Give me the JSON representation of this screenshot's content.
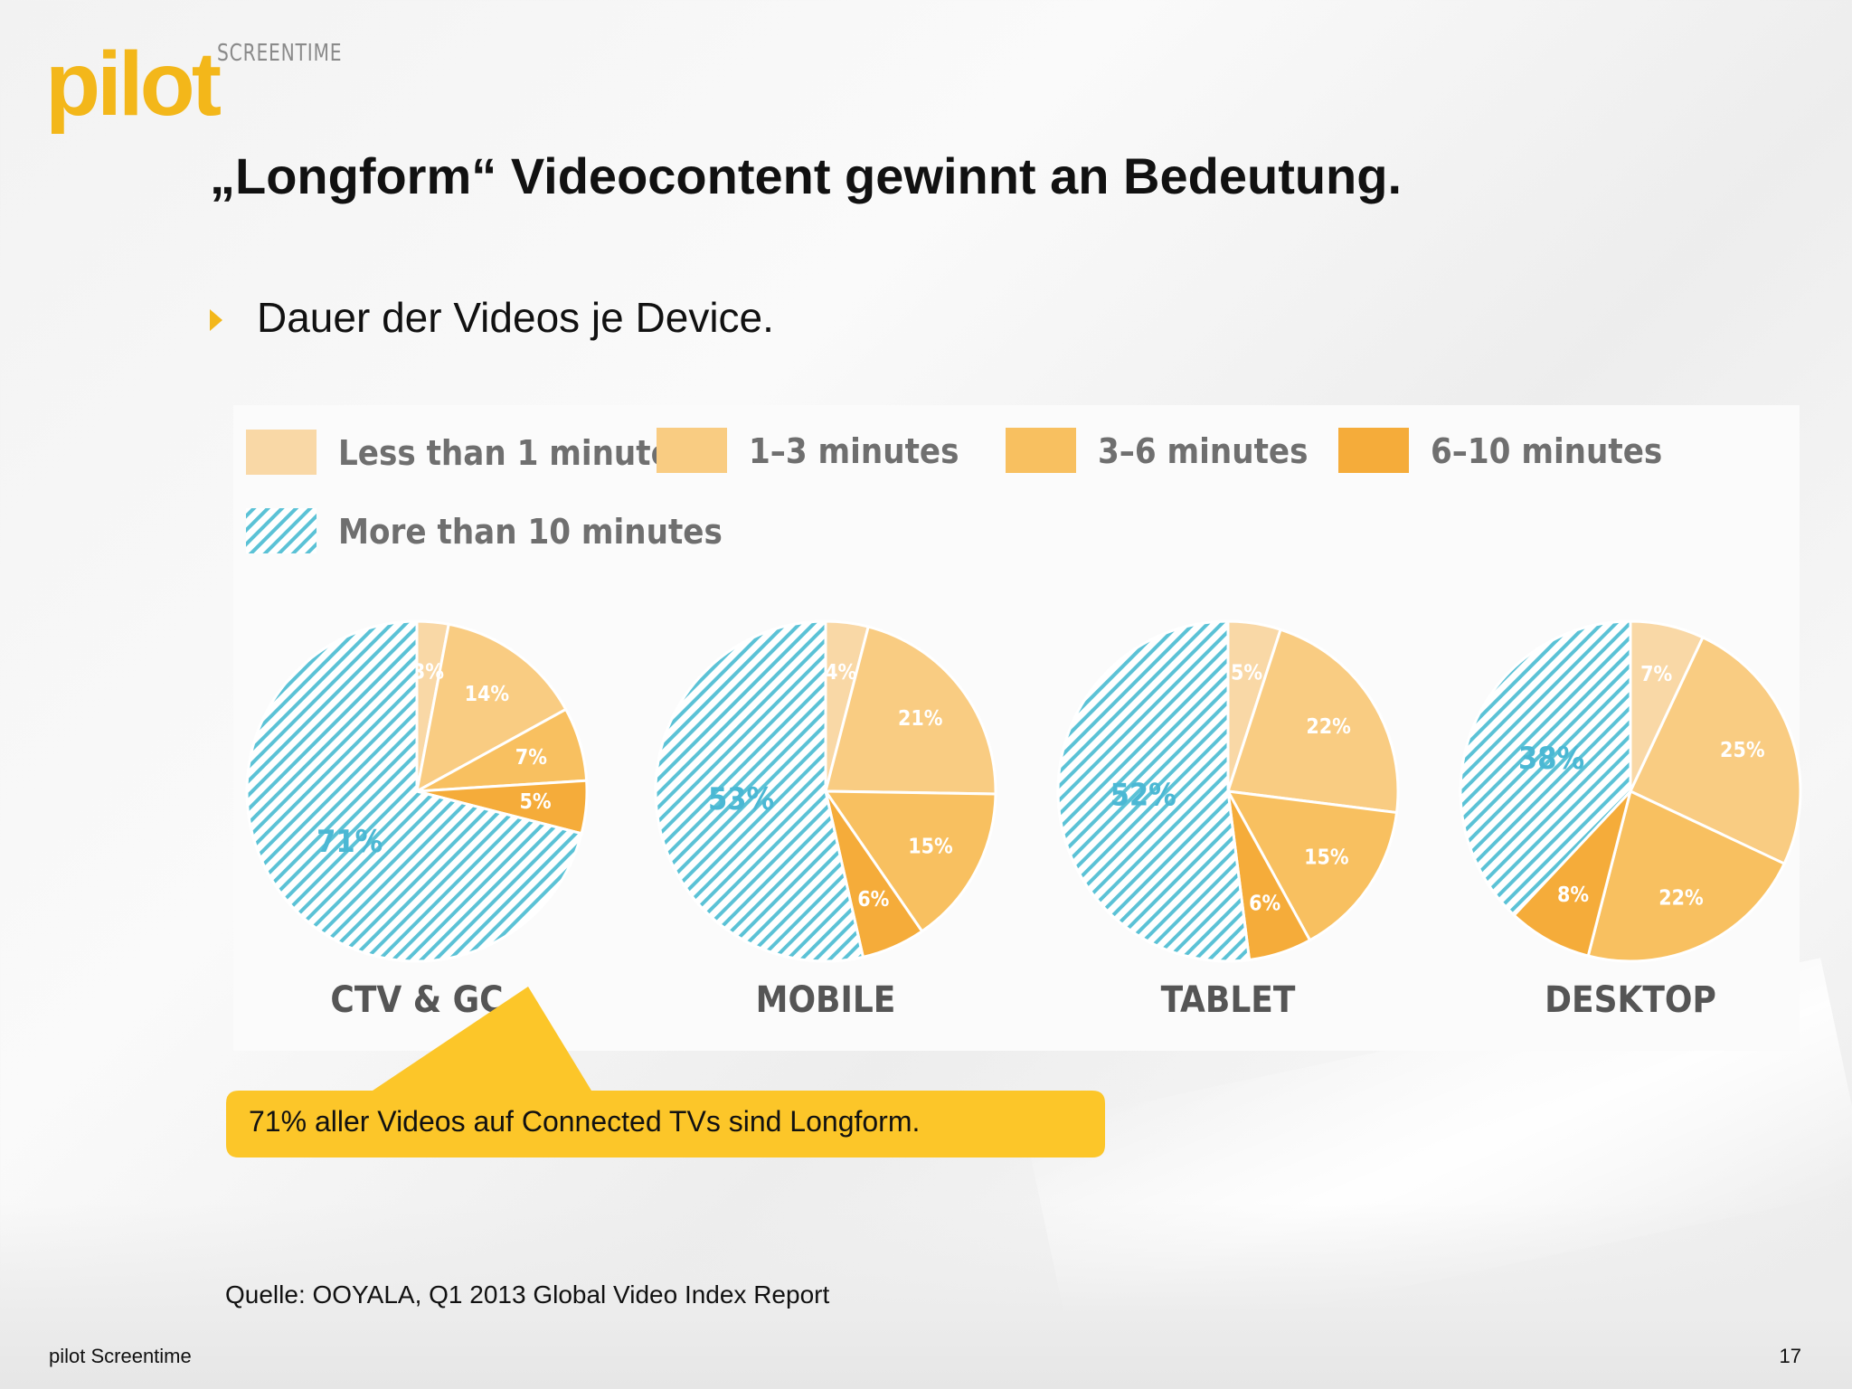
{
  "slide": {
    "logo_text": "pilot",
    "logo_sub": "SCREENTIME",
    "title": "„Longform“ Videocontent gewinnt an Bedeutung.",
    "bullet": "Dauer der Videos je Device.",
    "callout": "71% aller Videos auf Connected TVs sind Longform.",
    "source": "Quelle: OOYALA, Q1 2013 Global Video Index Report",
    "footer_left": "pilot Screentime",
    "page_number": "17"
  },
  "colors": {
    "brand_yellow": "#f3b71a",
    "callout_yellow": "#fcc629",
    "hatch_blue": "#5bc2d6",
    "label_blue": "#4bb8d4",
    "slice_lt1": "#f9d8a6",
    "slice_1_3": "#f9cc82",
    "slice_3_6": "#f8c060",
    "slice_6_10": "#f5ac3a"
  },
  "chart_data": [
    {
      "type": "pie",
      "title": "CTV & GC",
      "legend": [
        "Less than 1 minute",
        "1–3 minutes",
        "3–6 minutes",
        "6–10 minutes",
        "More than 10 minutes"
      ],
      "slices": [
        {
          "name": "Less than 1 minute",
          "value": 3,
          "label": "3%"
        },
        {
          "name": "1–3 minutes",
          "value": 14,
          "label": "14%"
        },
        {
          "name": "3–6 minutes",
          "value": 7,
          "label": "7%"
        },
        {
          "name": "6–10 minutes",
          "value": 5,
          "label": "5%"
        },
        {
          "name": "More than 10 minutes",
          "value": 71,
          "label": "71%"
        }
      ]
    },
    {
      "type": "pie",
      "title": "MOBILE",
      "legend": [
        "Less than 1 minute",
        "1–3 minutes",
        "3–6 minutes",
        "6–10 minutes",
        "More than 10 minutes"
      ],
      "slices": [
        {
          "name": "Less than 1 minute",
          "value": 4,
          "label": "4%"
        },
        {
          "name": "1–3 minutes",
          "value": 21,
          "label": "21%"
        },
        {
          "name": "3–6 minutes",
          "value": 15,
          "label": "15%"
        },
        {
          "name": "6–10 minutes",
          "value": 6,
          "label": "6%"
        },
        {
          "name": "More than 10 minutes",
          "value": 53,
          "label": "53%"
        }
      ]
    },
    {
      "type": "pie",
      "title": "TABLET",
      "legend": [
        "Less than 1 minute",
        "1–3 minutes",
        "3–6 minutes",
        "6–10 minutes",
        "More than 10 minutes"
      ],
      "slices": [
        {
          "name": "Less than 1 minute",
          "value": 5,
          "label": "5%"
        },
        {
          "name": "1–3 minutes",
          "value": 22,
          "label": "22%"
        },
        {
          "name": "3–6 minutes",
          "value": 15,
          "label": "15%"
        },
        {
          "name": "6–10 minutes",
          "value": 6,
          "label": "6%"
        },
        {
          "name": "More than 10 minutes",
          "value": 52,
          "label": "52%"
        }
      ]
    },
    {
      "type": "pie",
      "title": "DESKTOP",
      "legend": [
        "Less than 1 minute",
        "1–3 minutes",
        "3–6 minutes",
        "6–10 minutes",
        "More than 10 minutes"
      ],
      "slices": [
        {
          "name": "Less than 1 minute",
          "value": 7,
          "label": "7%"
        },
        {
          "name": "1–3 minutes",
          "value": 25,
          "label": "25%"
        },
        {
          "name": "3–6 minutes",
          "value": 22,
          "label": "22%"
        },
        {
          "name": "6–10 minutes",
          "value": 8,
          "label": "8%"
        },
        {
          "name": "More than 10 minutes",
          "value": 38,
          "label": "38%"
        }
      ]
    }
  ]
}
